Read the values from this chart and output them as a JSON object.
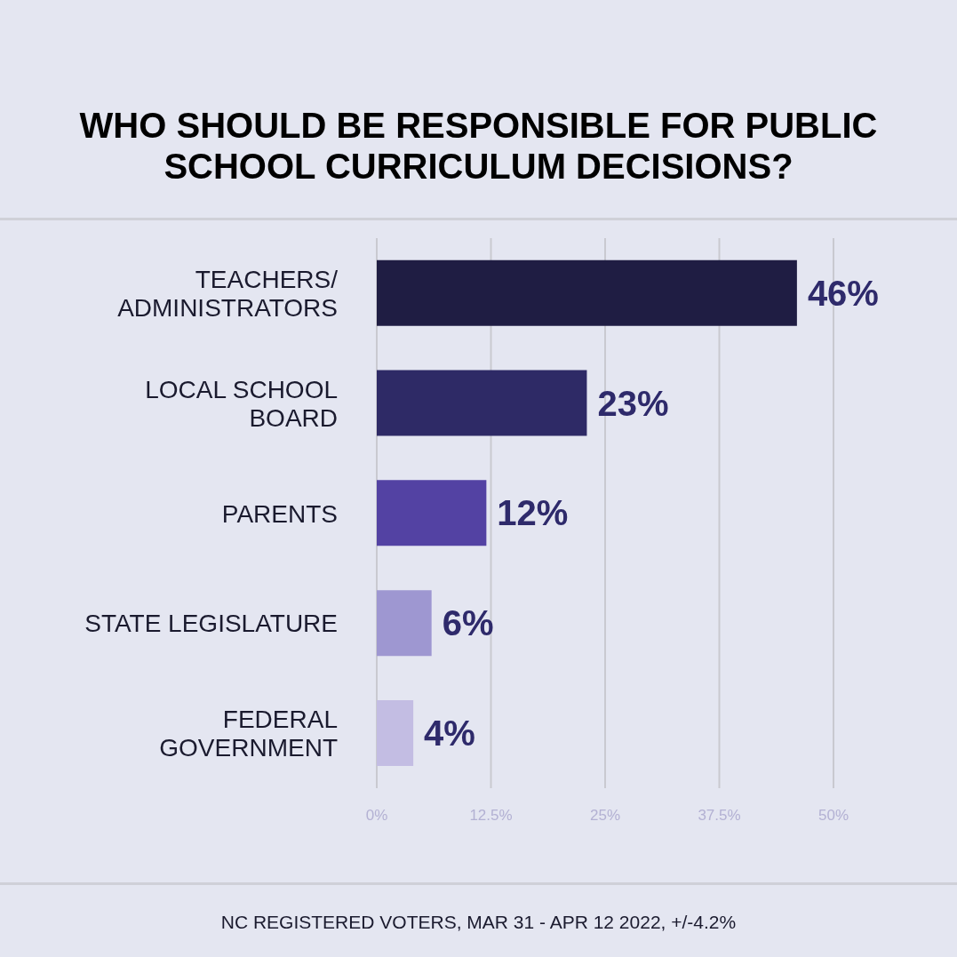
{
  "chart_data": {
    "type": "bar",
    "orientation": "horizontal",
    "title": "WHO SHOULD BE RESPONSIBLE FOR PUBLIC SCHOOL CURRICULUM DECISIONS?",
    "categories": [
      "TEACHERS/ ADMINISTRATORS",
      "LOCAL SCHOOL BOARD",
      "PARENTS",
      "STATE LEGISLATURE",
      "FEDERAL GOVERNMENT"
    ],
    "values": [
      46,
      23,
      12,
      6,
      4
    ],
    "colors": [
      "#1f1d43",
      "#2e2a66",
      "#5342a3",
      "#9e97d1",
      "#c3bde3"
    ],
    "value_labels": [
      "46%",
      "23%",
      "12%",
      "6%",
      "4%"
    ],
    "xlim": [
      0,
      50
    ],
    "xticks": [
      {
        "value": 0,
        "label": "0%"
      },
      {
        "value": 12.5,
        "label": "12.5%"
      },
      {
        "value": 25,
        "label": "25%"
      },
      {
        "value": 37.5,
        "label": "37.5%"
      },
      {
        "value": 50,
        "label": "50%"
      }
    ],
    "grid": "x",
    "annotations": [
      "NC REGISTERED VOTERS, MAR 31 - APR 12 2022, +/-4.2%"
    ]
  }
}
